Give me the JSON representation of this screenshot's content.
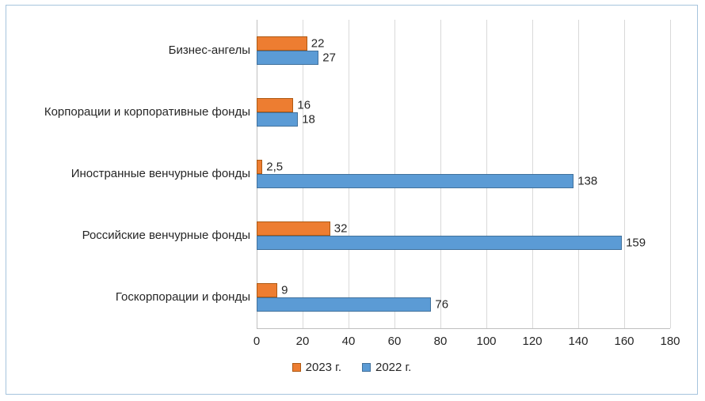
{
  "chart_data": {
    "type": "bar",
    "orientation": "horizontal",
    "categories": [
      "Бизнес-ангелы",
      "Корпорации и корпоративные фонды",
      "Иностранные венчурные фонды",
      "Российские венчурные фонды",
      "Госкорпорации и фонды"
    ],
    "series": [
      {
        "name": "2023 г.",
        "color": "#ED7D31",
        "border_color": "#AE5A14",
        "values": [
          22,
          16,
          2.5,
          32,
          9
        ],
        "labels": [
          "22",
          "16",
          "2,5",
          "32",
          "9"
        ]
      },
      {
        "name": "2022 г.",
        "color": "#5B9BD5",
        "border_color": "#41719C",
        "values": [
          27,
          18,
          138,
          159,
          76
        ],
        "labels": [
          "27",
          "18",
          "138",
          "159",
          "76"
        ]
      }
    ],
    "xlim": [
      0,
      180
    ],
    "xticks": [
      0,
      20,
      40,
      60,
      80,
      100,
      120,
      140,
      160,
      180
    ],
    "grid": "vertical",
    "legend_position": "bottom"
  }
}
